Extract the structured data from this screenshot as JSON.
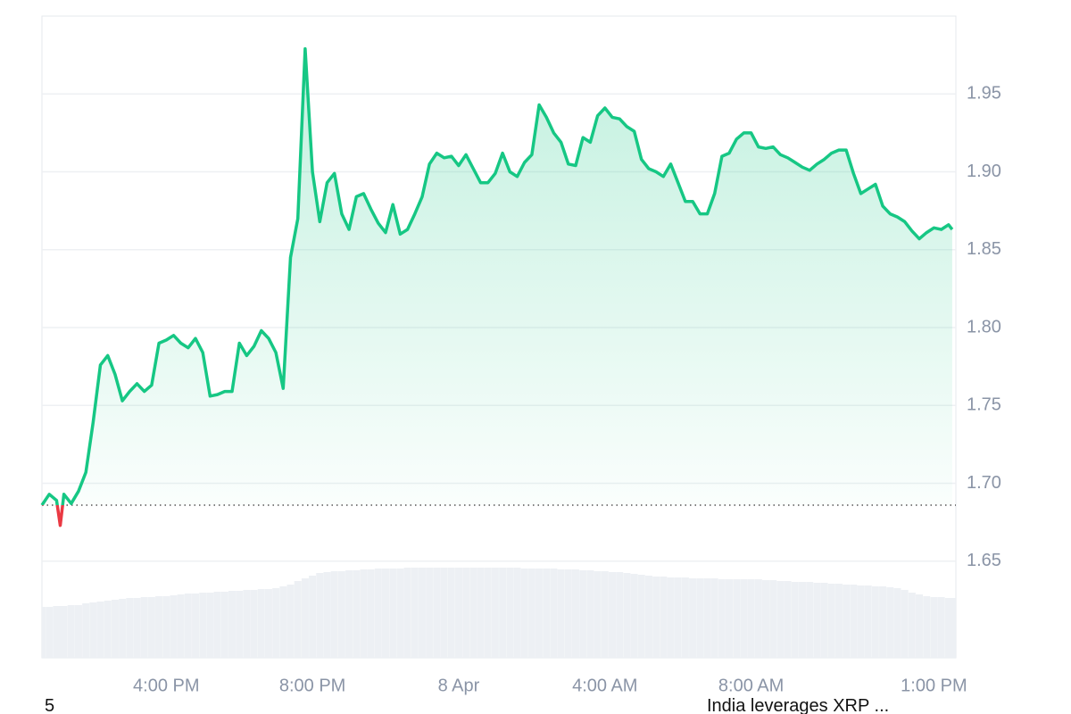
{
  "chart_data": {
    "type": "line",
    "x": [
      12.6,
      12.8,
      13.0,
      13.1,
      13.2,
      13.4,
      13.6,
      13.8,
      14.0,
      14.2,
      14.4,
      14.6,
      14.8,
      15.0,
      15.2,
      15.4,
      15.6,
      15.8,
      16.0,
      16.2,
      16.4,
      16.6,
      16.8,
      17.0,
      17.2,
      17.4,
      17.6,
      17.8,
      18.0,
      18.2,
      18.4,
      18.6,
      18.8,
      19.0,
      19.2,
      19.4,
      19.6,
      19.8,
      20.0,
      20.2,
      20.4,
      20.6,
      20.8,
      21.0,
      21.2,
      21.4,
      21.6,
      21.8,
      22.0,
      22.2,
      22.4,
      22.6,
      22.8,
      23.0,
      23.2,
      23.4,
      23.6,
      23.8,
      24.0,
      24.2,
      24.4,
      24.6,
      24.8,
      25.0,
      25.2,
      25.4,
      25.6,
      25.8,
      26.0,
      26.2,
      26.4,
      26.6,
      26.8,
      27.0,
      27.2,
      27.4,
      27.6,
      27.8,
      28.0,
      28.2,
      28.4,
      28.6,
      28.8,
      29.0,
      29.2,
      29.4,
      29.6,
      29.8,
      30.0,
      30.2,
      30.4,
      30.6,
      30.8,
      31.0,
      31.2,
      31.4,
      31.6,
      31.8,
      32.0,
      32.2,
      32.4,
      32.6,
      32.8,
      33.0,
      33.2,
      33.4,
      33.6,
      33.8,
      34.0,
      34.2,
      34.4,
      34.6,
      34.8,
      35.0,
      35.2,
      35.4,
      35.6,
      35.8,
      36.0,
      36.2,
      36.4,
      36.6,
      36.8,
      37.0,
      37.2,
      37.4,
      37.5
    ],
    "values": [
      1.686,
      1.693,
      1.689,
      1.673,
      1.693,
      1.687,
      1.695,
      1.707,
      1.739,
      1.776,
      1.782,
      1.77,
      1.753,
      1.759,
      1.764,
      1.759,
      1.763,
      1.79,
      1.792,
      1.795,
      1.79,
      1.787,
      1.793,
      1.784,
      1.756,
      1.757,
      1.759,
      1.759,
      1.79,
      1.782,
      1.788,
      1.798,
      1.793,
      1.784,
      1.761,
      1.845,
      1.87,
      1.979,
      1.9,
      1.868,
      1.893,
      1.899,
      1.873,
      1.863,
      1.884,
      1.886,
      1.876,
      1.867,
      1.861,
      1.879,
      1.86,
      1.863,
      1.873,
      1.884,
      1.905,
      1.912,
      1.909,
      1.91,
      1.904,
      1.911,
      1.902,
      1.893,
      1.893,
      1.899,
      1.912,
      1.9,
      1.897,
      1.906,
      1.911,
      1.943,
      1.935,
      1.925,
      1.919,
      1.905,
      1.904,
      1.922,
      1.919,
      1.936,
      1.941,
      1.935,
      1.934,
      1.929,
      1.926,
      1.908,
      1.902,
      1.9,
      1.897,
      1.905,
      1.893,
      1.881,
      1.881,
      1.873,
      1.873,
      1.886,
      1.91,
      1.912,
      1.921,
      1.925,
      1.925,
      1.916,
      1.915,
      1.916,
      1.911,
      1.909,
      1.906,
      1.903,
      1.901,
      1.905,
      1.908,
      1.912,
      1.914,
      1.914,
      1.899,
      1.886,
      1.889,
      1.892,
      1.878,
      1.873,
      1.871,
      1.868,
      1.862,
      1.857,
      1.861,
      1.864,
      1.863,
      1.866,
      1.863
    ],
    "volume": [
      57,
      57,
      58,
      58,
      58,
      59,
      59,
      61,
      62,
      63,
      64,
      65,
      66,
      67,
      67,
      68,
      68,
      69,
      69,
      70,
      71,
      72,
      72,
      73,
      73,
      74,
      74,
      75,
      75,
      76,
      76,
      77,
      77,
      78,
      80,
      82,
      86,
      89,
      92,
      95,
      96,
      97,
      97,
      98,
      98,
      99,
      99,
      100,
      100,
      100,
      100,
      101,
      101,
      101,
      101,
      101,
      101,
      101,
      101,
      101,
      101,
      101,
      101,
      101,
      101,
      101,
      101,
      100,
      100,
      100,
      100,
      100,
      99,
      99,
      99,
      98,
      98,
      97,
      97,
      96,
      96,
      95,
      94,
      93,
      92,
      91,
      91,
      90,
      90,
      90,
      89,
      89,
      89,
      89,
      88,
      88,
      88,
      88,
      88,
      88,
      87,
      87,
      86,
      86,
      85,
      85,
      85,
      84,
      84,
      83,
      83,
      82,
      82,
      81,
      81,
      80,
      80,
      79,
      78,
      76,
      73,
      71,
      69,
      68,
      68,
      67,
      67
    ],
    "volume_lim": [
      0,
      100
    ],
    "baseline": 1.686,
    "color": "#16c784",
    "down_color": "#ea3943",
    "volume_color": "#edf0f4",
    "xlim": [
      12.6,
      37.6
    ],
    "xticks": [
      {
        "value": 16,
        "label": "4:00 PM"
      },
      {
        "value": 20,
        "label": "8:00 PM"
      },
      {
        "value": 24,
        "label": "8 Apr"
      },
      {
        "value": 28,
        "label": "4:00 AM"
      },
      {
        "value": 32,
        "label": "8:00 AM"
      },
      {
        "value": 37,
        "label": "1:00 PM"
      }
    ],
    "ylim": [
      1.588,
      2.0
    ],
    "yticks": [
      1.65,
      {
        "value": 1.7,
        "label": "1.70"
      },
      1.75,
      {
        "value": 1.8,
        "label": "1.80"
      },
      1.85,
      {
        "value": 1.9,
        "label": "1.90"
      },
      1.95
    ],
    "grid": true
  },
  "footer": {
    "left": "5",
    "right": "India leverages XRP ..."
  }
}
